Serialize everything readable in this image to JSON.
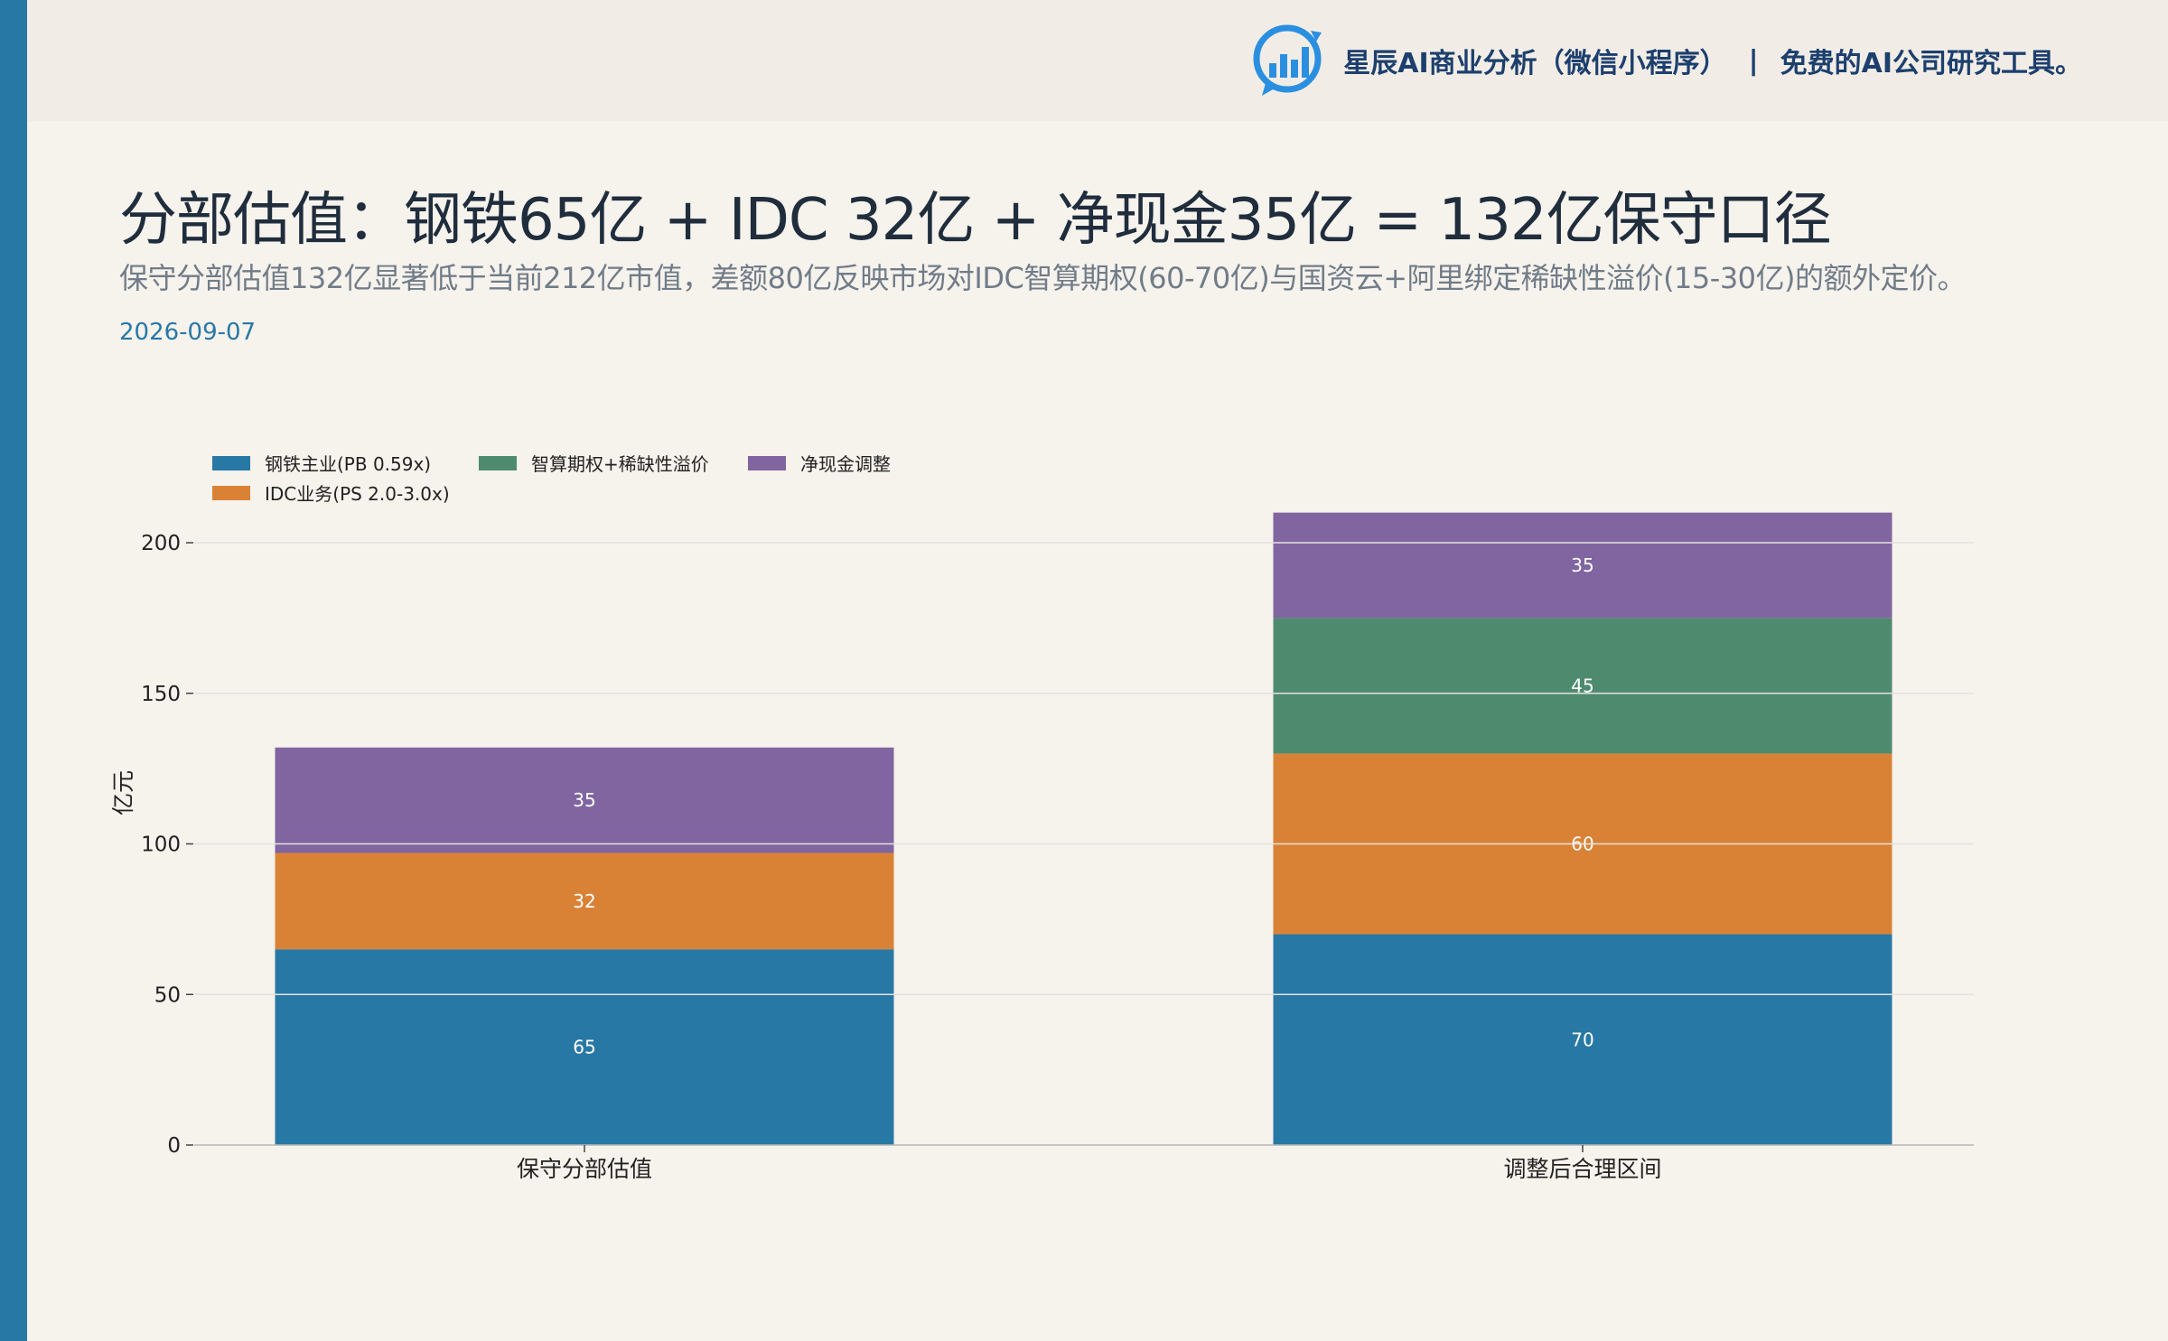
{
  "header": {
    "brand_name": "星辰AI商业分析（微信小程序）",
    "separator": "|",
    "tagline": "免费的AI公司研究工具。",
    "logo_icon": "bar-chart-logo-icon"
  },
  "title": "分部估值：钢铁65亿 + IDC 32亿 + 净现金35亿 = 132亿保守口径",
  "subtitle": "保守分部估值132亿显著低于当前212亿市值，差额80亿反映市场对IDC智算期权(60-70亿)与国资云+阿里绑定稀缺性溢价(15-30亿)的额外定价。",
  "date": "2026-09-07",
  "colors": {
    "accent": "#2878a6",
    "steel": "#2878a6",
    "idc": "#d98236",
    "option": "#4e8b6e",
    "cash": "#8065a0"
  },
  "chart_data": {
    "type": "bar",
    "stacked": true,
    "categories": [
      "保守分部估值",
      "调整后合理区间"
    ],
    "series": [
      {
        "name": "钢铁主业(PB 0.59x)",
        "color": "#2878a6",
        "values": [
          65,
          70
        ]
      },
      {
        "name": "IDC业务(PS 2.0-3.0x)",
        "color": "#d98236",
        "values": [
          32,
          60
        ]
      },
      {
        "name": "智算期权+稀缺性溢价",
        "color": "#4e8b6e",
        "values": [
          0,
          45
        ]
      },
      {
        "name": "净现金调整",
        "color": "#8065a0",
        "values": [
          35,
          35
        ]
      }
    ],
    "ylabel": "亿元",
    "xlabel": "",
    "ylim": [
      0,
      215
    ],
    "yticks": [
      0,
      50,
      100,
      150,
      200
    ],
    "grid": true,
    "legend": "top-left"
  }
}
